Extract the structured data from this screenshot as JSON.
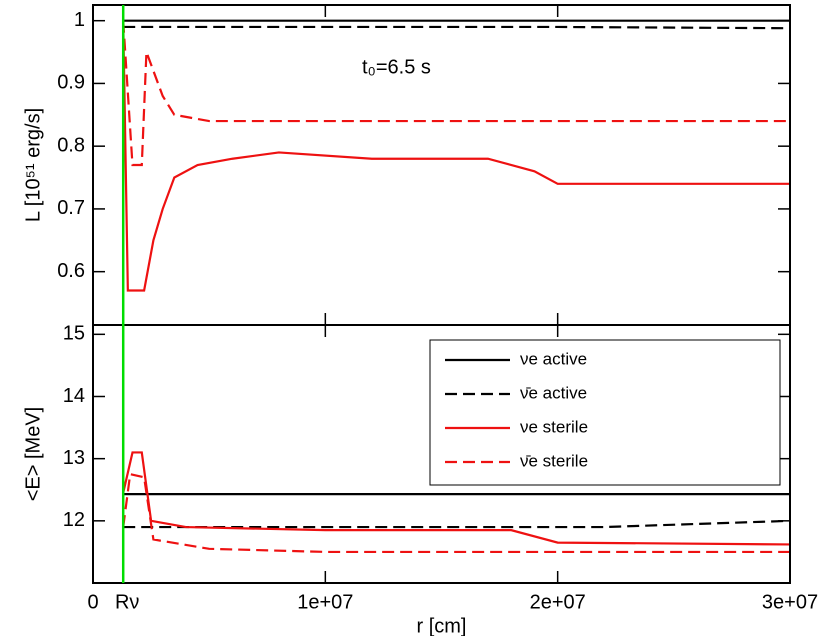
{
  "chart_data": [
    {
      "type": "line",
      "ylabel": "L [10⁵¹ erg/s]",
      "annotation": "t₀=6.5 s",
      "xlim": [
        0,
        30000000
      ],
      "ylim": [
        0.515,
        1.025
      ],
      "yticks": [
        0.6,
        0.7,
        0.8,
        0.9,
        1
      ],
      "series": [
        {
          "name": "νe active",
          "color": "#000000",
          "dash": false,
          "x": [
            1300000,
            30000000
          ],
          "values": [
            1.0,
            1.0
          ]
        },
        {
          "name": "ν̄e active",
          "color": "#000000",
          "dash": true,
          "x": [
            1300000,
            20000000,
            30000000
          ],
          "values": [
            0.99,
            0.99,
            0.988
          ]
        },
        {
          "name": "νe sterile",
          "color": "#ee1111",
          "dash": false,
          "x": [
            1300000,
            1500000,
            2200000,
            2600000,
            3000000,
            3500000,
            4500000,
            6000000,
            8000000,
            12000000,
            17000000,
            19000000,
            20000000,
            30000000
          ],
          "values": [
            1.0,
            0.57,
            0.57,
            0.65,
            0.7,
            0.75,
            0.77,
            0.78,
            0.79,
            0.78,
            0.78,
            0.76,
            0.74,
            0.74
          ]
        },
        {
          "name": "ν̄e sterile",
          "color": "#ee1111",
          "dash": true,
          "x": [
            1300000,
            1700000,
            2100000,
            2300000,
            3000000,
            3500000,
            5000000,
            30000000
          ],
          "values": [
            1.0,
            0.77,
            0.77,
            0.95,
            0.88,
            0.85,
            0.84,
            0.84
          ]
        }
      ]
    },
    {
      "type": "line",
      "ylabel": "<E> [MeV]",
      "xlabel": "r [cm]",
      "xlim": [
        0,
        30000000
      ],
      "xticks": [
        0,
        {
          "value": 10000000,
          "label": "1e+07"
        },
        {
          "value": 20000000,
          "label": "2e+07"
        },
        {
          "value": 30000000,
          "label": "3e+07"
        }
      ],
      "ylim": [
        11,
        15.15
      ],
      "yticks": [
        12,
        13,
        14,
        15
      ],
      "vline": {
        "x": 1300000,
        "label": "Rν",
        "color": "#00dd00"
      },
      "legend": "upper right",
      "series": [
        {
          "name": "νe active",
          "color": "#000000",
          "dash": false,
          "x": [
            1300000,
            30000000
          ],
          "values": [
            12.43,
            12.43
          ]
        },
        {
          "name": "ν̄e active",
          "color": "#000000",
          "dash": true,
          "x": [
            1300000,
            22000000,
            30000000
          ],
          "values": [
            11.9,
            11.9,
            12.0
          ]
        },
        {
          "name": "νe sterile",
          "color": "#ee1111",
          "dash": false,
          "x": [
            1300000,
            1700000,
            2100000,
            2500000,
            4000000,
            10000000,
            18000000,
            20000000,
            30000000
          ],
          "values": [
            12.45,
            13.1,
            13.1,
            12.0,
            11.9,
            11.85,
            11.85,
            11.65,
            11.62
          ]
        },
        {
          "name": "ν̄e sterile",
          "color": "#ee1111",
          "dash": true,
          "x": [
            1300000,
            1600000,
            2200000,
            2600000,
            5000000,
            10000000,
            30000000
          ],
          "values": [
            11.9,
            12.75,
            12.7,
            11.7,
            11.55,
            11.5,
            11.5
          ]
        }
      ]
    }
  ]
}
